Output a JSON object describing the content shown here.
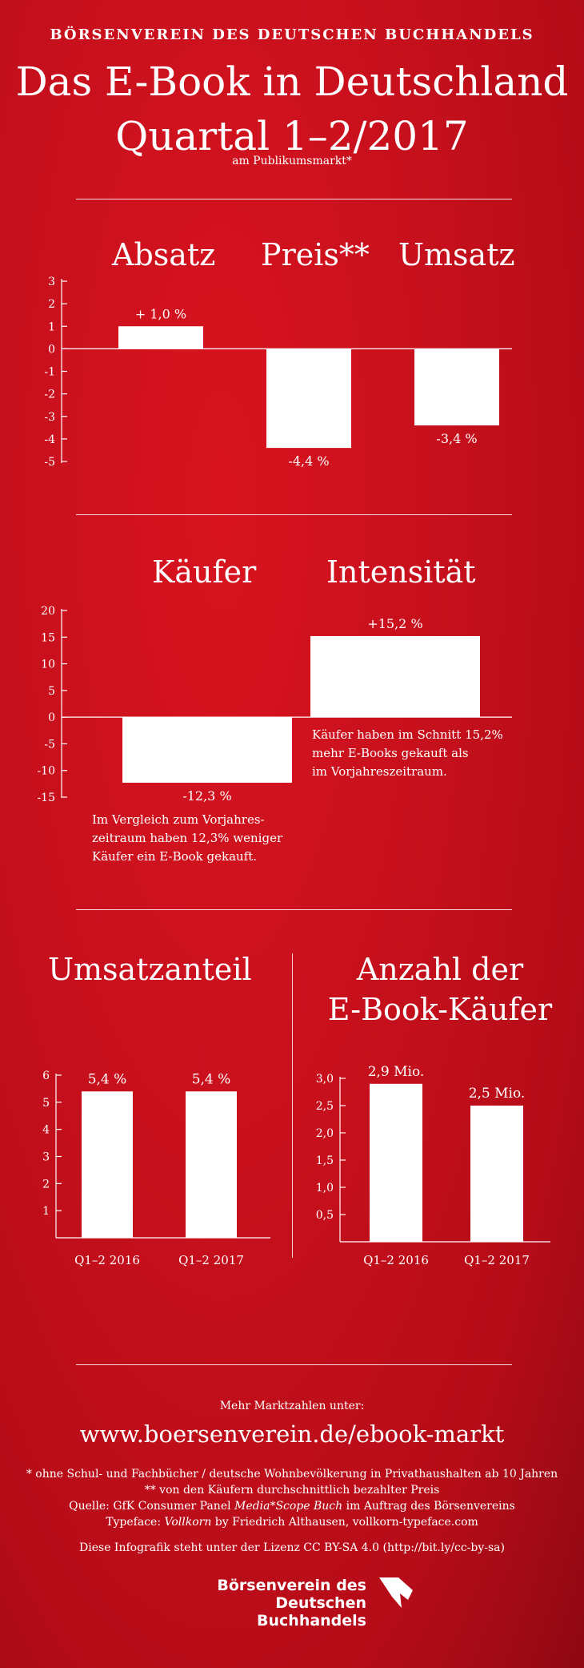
{
  "header": {
    "org": "BÖRSENVEREIN DES DEUTSCHEN BUCHHANDELS",
    "title_line1": "Das E-Book in Deutschland",
    "title_line2": "Quartal 1–2/2017",
    "subtitle": "am Publikumsmarkt*"
  },
  "notes": {
    "kaeufer": [
      "Im Vergleich zum Vorjahres-",
      "zeitraum haben 12,3% weniger",
      "Käufer ein E-Book gekauft."
    ],
    "intensitaet": [
      "Käufer haben im Schnitt 15,2%",
      "mehr E-Books gekauft als",
      "im Vorjahreszeitraum."
    ]
  },
  "footer": {
    "more": "Mehr Marktzahlen unter:",
    "url": "www.boersenverein.de/ebook-markt",
    "footnote1": "* ohne Schul- und Fachbücher / deutsche Wohnbevölkerung in Privathaushalten ab 10 Jahren",
    "footnote2": "** von den Käufern durchschnittlich bezahlter Preis",
    "source_prefix": "Quelle: GfK Consumer Panel ",
    "source_italic": "Media*Scope Buch",
    "source_suffix": " im Auftrag des Börsenvereins",
    "typeface_prefix": "Typeface: ",
    "typeface_italic": "Vollkorn",
    "typeface_suffix": " by Friedrich Althausen, vollkorn-typeface.com",
    "license": "Diese Infografik steht unter der Lizenz CC BY-SA 4.0 (http://bit.ly/cc-by-sa)",
    "logo_line1": "Börsenverein des",
    "logo_line2": "Deutschen Buchhandels"
  },
  "colors": {
    "background": "#c8101d",
    "bars": "#ffffff",
    "text": "#ffffff"
  },
  "chart_data": [
    {
      "type": "bar",
      "categories": [
        "Absatz",
        "Preis**",
        "Umsatz"
      ],
      "values": [
        1.0,
        -4.4,
        -3.4
      ],
      "value_labels": [
        "+ 1,0 %",
        "-4,4 %",
        "-3,4 %"
      ],
      "ylim": [
        -5,
        3
      ],
      "yticks": [
        "3",
        "2",
        "1",
        "0",
        "-1",
        "-2",
        "-3",
        "-4",
        "-5"
      ],
      "grid": false
    },
    {
      "type": "bar",
      "categories": [
        "Käufer",
        "Intensität"
      ],
      "values": [
        -12.3,
        15.2
      ],
      "value_labels": [
        "-12,3 %",
        "+15,2 %"
      ],
      "ylim": [
        -15,
        20
      ],
      "yticks": [
        "20",
        "15",
        "10",
        "5",
        "0",
        "-5",
        "-10",
        "-15"
      ],
      "grid": false
    },
    {
      "type": "bar",
      "title": "Umsatzanteil",
      "categories": [
        "Q1–2 2016",
        "Q1–2 2017"
      ],
      "values": [
        5.4,
        5.4
      ],
      "value_labels": [
        "5,4 %",
        "5,4 %"
      ],
      "ylim": [
        0,
        6
      ],
      "yticks": [
        "6",
        "5",
        "4",
        "3",
        "2",
        "1"
      ],
      "grid": false
    },
    {
      "type": "bar",
      "title_line1": "Anzahl der",
      "title_line2": "E-Book-Käufer",
      "categories": [
        "Q1–2 2016",
        "Q1–2 2017"
      ],
      "values": [
        2.9,
        2.5
      ],
      "value_labels": [
        "2,9 Mio.",
        "2,5 Mio."
      ],
      "ylim": [
        0,
        3.0
      ],
      "yticks": [
        "3,0",
        "2,5",
        "2,0",
        "1,5",
        "1,0",
        "0,5"
      ],
      "grid": false
    }
  ]
}
